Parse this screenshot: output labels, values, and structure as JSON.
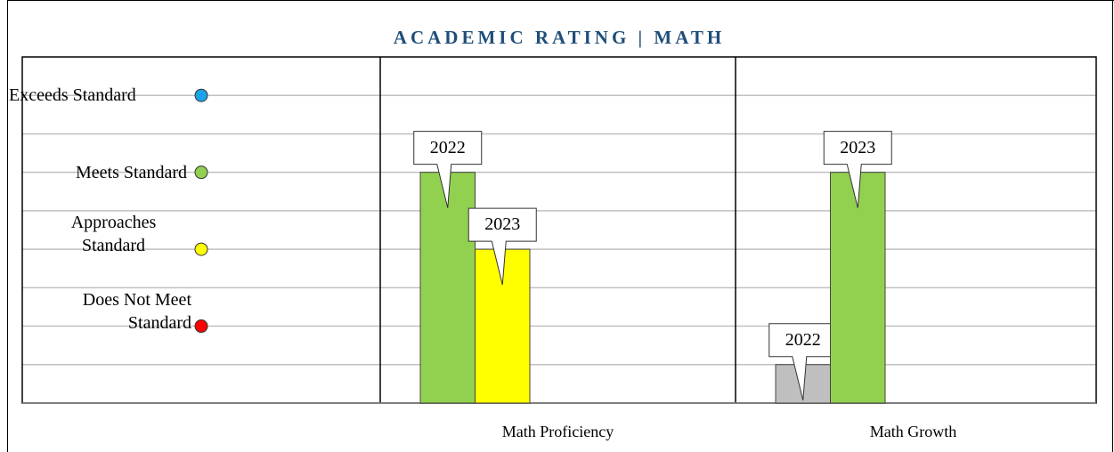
{
  "chart_data": {
    "type": "bar",
    "title": "ACADEMIC RATING | MATH",
    "categories": [
      "Math Proficiency",
      "Math Growth"
    ],
    "series": [
      {
        "name": "2022",
        "values": [
          6,
          1
        ],
        "colors": [
          "#92d050",
          "#bfbfbf"
        ]
      },
      {
        "name": "2023",
        "values": [
          4,
          6
        ],
        "colors": [
          "#ffff00",
          "#92d050"
        ]
      }
    ],
    "levels": [
      {
        "label": "Exceeds Standard",
        "value": 8,
        "color": "#1aa3e8"
      },
      {
        "label": "Meets Standard",
        "value": 6,
        "color": "#92d050"
      },
      {
        "label": "Approaches Standard",
        "value": 4,
        "color": "#ffff00"
      },
      {
        "label": "Does Not Meet Standard",
        "value": 2,
        "color": "#ff0000"
      }
    ],
    "ylim": [
      0,
      9
    ],
    "yticks": [
      1,
      2,
      3,
      4,
      5,
      6,
      7,
      8
    ],
    "grid": true
  }
}
